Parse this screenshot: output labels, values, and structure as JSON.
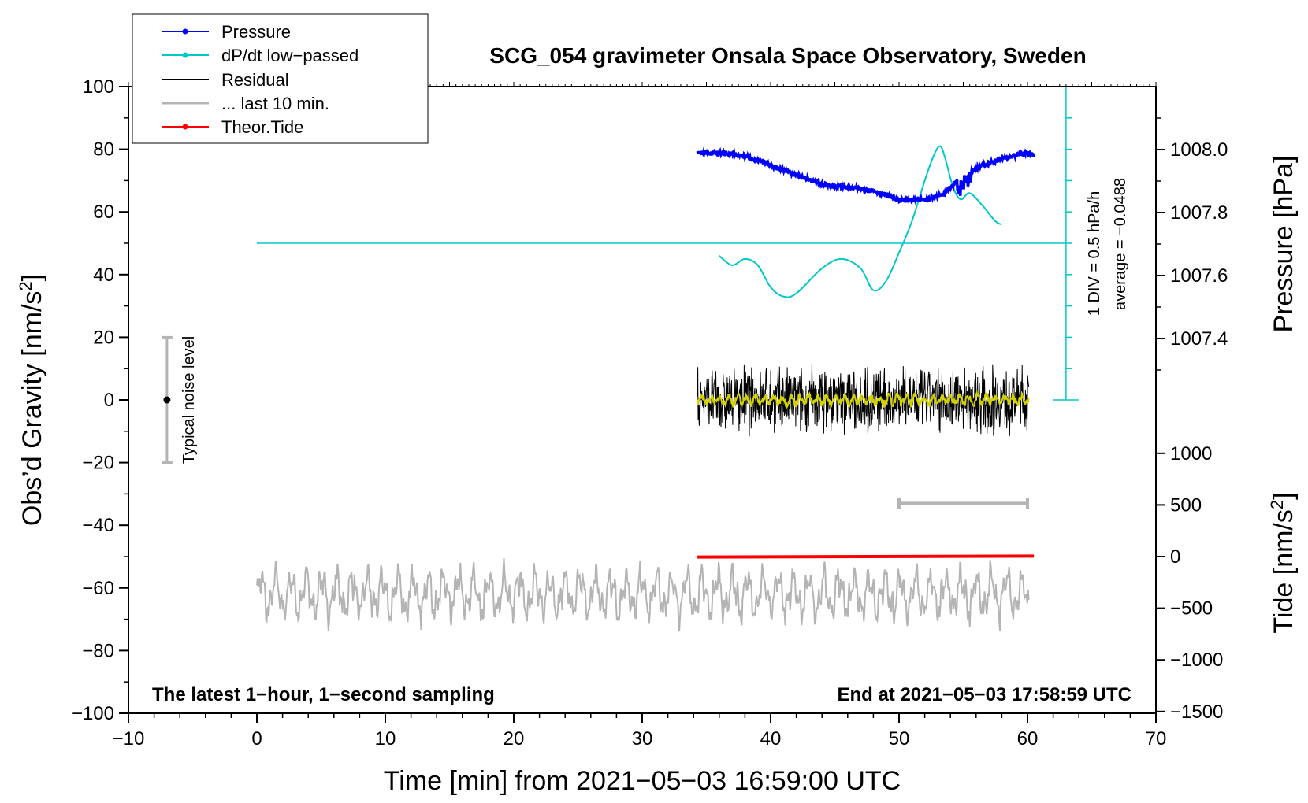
{
  "chart_data": {
    "type": "line",
    "title": "SCG_054 gravimeter Onsala Space Observatory, Sweden",
    "xlabel": "Time [min] from 2021−05−03 16:59:00 UTC",
    "ylabel_left": "Obs’d Gravity [nm/s",
    "ylabel_right_top": "Pressure [hPa]",
    "ylabel_right_bottom": "Tide [nm/s",
    "superscript": "2",
    "label_close": "]",
    "xlim": [
      -10,
      70
    ],
    "ylim": [
      -100,
      100
    ],
    "x_ticks": [
      -10,
      0,
      10,
      20,
      30,
      40,
      50,
      60,
      70
    ],
    "x_tick_labels": [
      "−10",
      "0",
      "10",
      "20",
      "30",
      "40",
      "50",
      "60",
      "70"
    ],
    "y_ticks": [
      -100,
      -80,
      -60,
      -40,
      -20,
      0,
      20,
      40,
      60,
      80,
      100
    ],
    "y_tick_labels": [
      "−100",
      "−80",
      "−60",
      "−40",
      "−20",
      "0",
      "20",
      "40",
      "60",
      "80",
      "100"
    ],
    "pressure_axis": {
      "range": [
        1007.2,
        1008.2
      ],
      "ticks": [
        1007.4,
        1007.6,
        1007.8,
        1008.0
      ],
      "tick_labels": [
        "1007.4",
        "1007.6",
        "1007.8",
        "1008.0"
      ]
    },
    "tide_axis": {
      "range": [
        -1500,
        1000
      ],
      "ticks": [
        -1500,
        -1000,
        -500,
        0,
        500,
        1000
      ],
      "tick_labels": [
        "−1500",
        "−1000",
        "−500",
        "0",
        "500",
        "1000"
      ]
    },
    "legend": [
      {
        "label": "Pressure",
        "color": "#0000ff",
        "marker": true
      },
      {
        "label": "dP/dt low−passed",
        "color": "#00c8c8",
        "marker": true
      },
      {
        "label": "Residual",
        "color": "#000000",
        "marker": false
      },
      {
        "label": "... last 10 min.",
        "color": "#b4b4b4",
        "marker": false
      },
      {
        "label": "Theor.Tide",
        "color": "#ff0000",
        "marker": true
      }
    ],
    "series": [
      {
        "name": "Pressure",
        "color": "#0000ff",
        "units": "hPa",
        "x": [
          34.3,
          36,
          38,
          40,
          42,
          44,
          46,
          48,
          50,
          52,
          53.5,
          54.5,
          55.5,
          56.5,
          58,
          60,
          60.5
        ],
        "values": [
          1007.99,
          1007.99,
          1007.98,
          1007.95,
          1007.92,
          1007.89,
          1007.88,
          1007.87,
          1007.84,
          1007.84,
          1007.86,
          1007.9,
          1007.93,
          1007.95,
          1007.97,
          1007.99,
          1007.98
        ]
      },
      {
        "name": "dP/dt low−passed",
        "color": "#00c8c8",
        "units": "nm/s2 display scale",
        "x": [
          36,
          37,
          38,
          39,
          40,
          41,
          42,
          44,
          45.5,
          47,
          48,
          49,
          50,
          51,
          52,
          52.7,
          53.2,
          53.6,
          54.2,
          54.8,
          55.5,
          56.5,
          57.5,
          58
        ],
        "values": [
          46,
          43,
          45,
          43,
          36,
          33,
          34,
          42,
          45,
          42,
          35,
          38,
          47,
          57,
          70,
          78,
          81,
          77,
          68,
          64,
          66,
          62,
          57,
          56
        ]
      },
      {
        "name": "Residual",
        "color": "#000000",
        "x_range": [
          34.3,
          60.1
        ],
        "amplitude": 12,
        "values": [
          0
        ]
      },
      {
        "name": "Residual smoothed",
        "color": "#d2d200",
        "x_range": [
          34.3,
          60.1
        ],
        "values": [
          0
        ]
      },
      {
        "name": "... last 10 min.",
        "color": "#b4b4b4",
        "x_range": [
          0,
          60.1
        ],
        "baseline": -62,
        "values": [
          -62
        ]
      },
      {
        "name": "Theor.Tide",
        "color": "#ff0000",
        "units": "nm/s2",
        "x": [
          34.3,
          60.5
        ],
        "values": [
          -5,
          5
        ]
      }
    ],
    "dpdt_reference": {
      "x_range": [
        0,
        63
      ],
      "value": 50,
      "label_div": "1 DIV = 0.5 hPa/h",
      "label_avg": "average = −0.0488"
    },
    "dpdt_scale": {
      "x": 63,
      "range": [
        0,
        100
      ],
      "ticks": [
        0,
        10,
        20,
        30,
        40,
        50,
        60,
        70,
        80,
        90,
        100
      ]
    },
    "noise_bar": {
      "x": -7,
      "center": 0,
      "half_range": 20,
      "label": "Typical noise level"
    },
    "last10_bar": {
      "x_range": [
        50,
        60
      ],
      "y": -33
    },
    "notes": {
      "left": "The latest 1−hour, 1−second sampling",
      "right": "End at 2021−05−03 17:58:59 UTC"
    }
  }
}
